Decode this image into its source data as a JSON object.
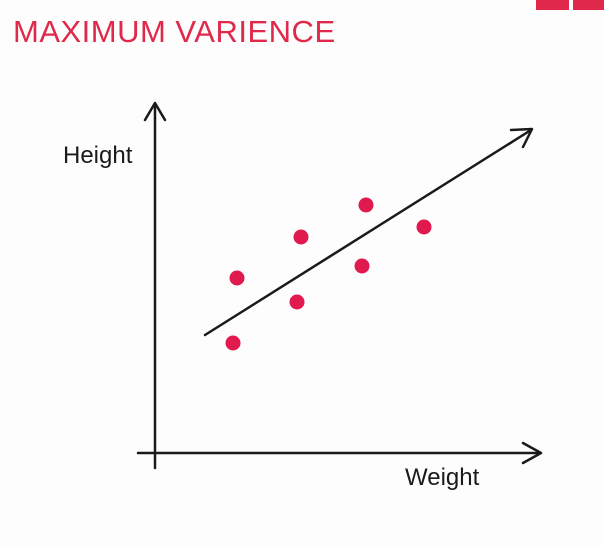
{
  "title": "MAXIMUM VARIENCE",
  "y_axis_label": "Height",
  "x_axis_label": "Weight",
  "colors": {
    "accent": "#e0294a",
    "line": "#1a1a1a",
    "point": "#e0194f"
  },
  "points": [
    {
      "name": "point-1"
    },
    {
      "name": "point-2"
    },
    {
      "name": "point-3"
    },
    {
      "name": "point-4"
    },
    {
      "name": "point-5"
    },
    {
      "name": "point-6"
    },
    {
      "name": "point-7"
    }
  ]
}
